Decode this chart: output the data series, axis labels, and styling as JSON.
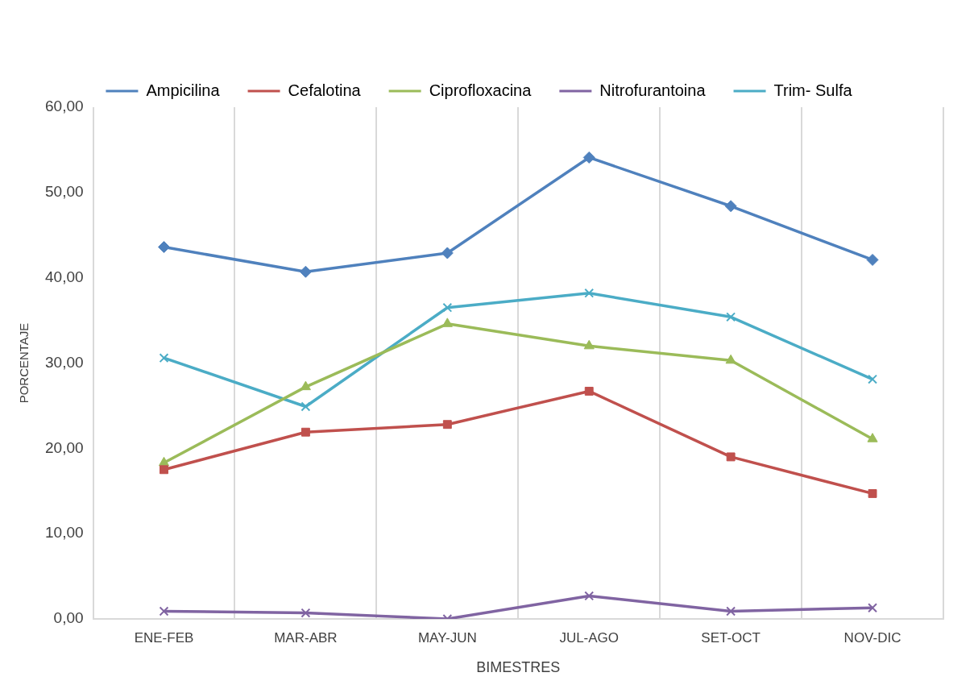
{
  "chart_data": {
    "type": "line",
    "xlabel": "BIMESTRES",
    "ylabel": "PORCENTAJE",
    "categories": [
      "ENE-FEB",
      "MAR-ABR",
      "MAY-JUN",
      "JUL-AGO",
      "SET-OCT",
      "NOV-DIC"
    ],
    "series": [
      {
        "name": "Ampicilina",
        "color": "#4f81bd",
        "marker": "diamond",
        "values": [
          43.6,
          40.7,
          42.9,
          54.1,
          48.4,
          42.1
        ]
      },
      {
        "name": "Cefalotina",
        "color": "#c0504d",
        "marker": "square",
        "values": [
          17.5,
          21.9,
          22.8,
          26.7,
          19.0,
          14.7
        ]
      },
      {
        "name": "Ciprofloxacina",
        "color": "#9bbb59",
        "marker": "triangle",
        "values": [
          18.3,
          27.2,
          34.6,
          32.0,
          30.3,
          21.1
        ]
      },
      {
        "name": "Nitrofurantoina",
        "color": "#8064a2",
        "marker": "cross",
        "values": [
          0.9,
          0.7,
          0,
          2.7,
          0.9,
          1.3
        ]
      },
      {
        "name": "Trim- Sulfa",
        "color": "#4bacc6",
        "marker": "cross",
        "values": [
          30.6,
          24.9,
          36.5,
          38.2,
          35.4,
          28.1
        ]
      }
    ],
    "ylim": [
      0,
      60
    ],
    "yticks": [
      {
        "value": 0,
        "label": "0,00"
      },
      {
        "value": 10,
        "label": "10,00"
      },
      {
        "value": 20,
        "label": "20,00"
      },
      {
        "value": 30,
        "label": "30,00"
      },
      {
        "value": 40,
        "label": "40,00"
      },
      {
        "value": 50,
        "label": "50,00"
      },
      {
        "value": 60,
        "label": "60,00"
      }
    ],
    "grid": "x",
    "legend": "top",
    "line_style": "solid"
  }
}
